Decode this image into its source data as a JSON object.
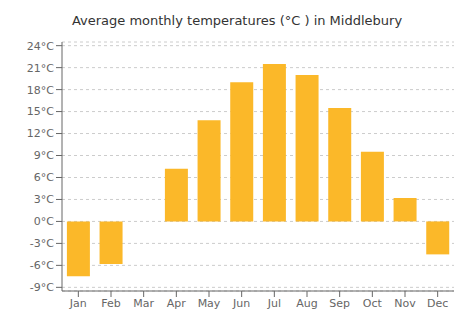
{
  "chart_data": {
    "type": "bar",
    "title": "Average monthly temperatures (°C ) in Middlebury",
    "categories": [
      "Jan",
      "Feb",
      "Mar",
      "Apr",
      "May",
      "Jun",
      "Jul",
      "Aug",
      "Sep",
      "Oct",
      "Nov",
      "Dec"
    ],
    "values": [
      -7.5,
      -5.8,
      0.0,
      7.2,
      13.8,
      19.0,
      21.5,
      20.0,
      15.5,
      9.5,
      3.2,
      -4.5
    ],
    "color": "#FBB829",
    "ylim": [
      -9.5,
      24.5
    ],
    "yticks": [
      {
        "value": -9,
        "label": "-9°C"
      },
      {
        "value": -6,
        "label": "-6°C"
      },
      {
        "value": -3,
        "label": "-3°C"
      },
      {
        "value": 0,
        "label": "0°C"
      },
      {
        "value": 3,
        "label": "3°C"
      },
      {
        "value": 6,
        "label": "6°C"
      },
      {
        "value": 9,
        "label": "9°C"
      },
      {
        "value": 12,
        "label": "12°C"
      },
      {
        "value": 15,
        "label": "15°C"
      },
      {
        "value": 18,
        "label": "18°C"
      },
      {
        "value": 21,
        "label": "21°C"
      },
      {
        "value": 24,
        "label": "24°C"
      }
    ],
    "grid": true
  }
}
